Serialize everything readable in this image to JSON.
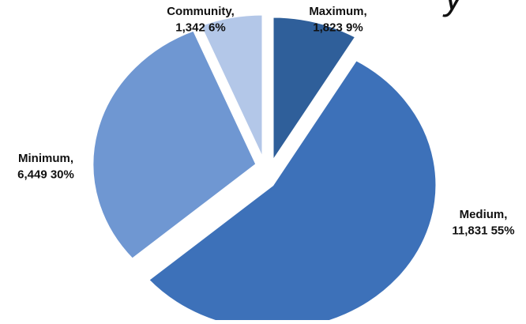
{
  "chart_data": {
    "type": "pie",
    "title_fragment": "y",
    "slices": [
      {
        "category": "Maximum",
        "value": 1823,
        "percent": 9,
        "label_line1": "Maximum,",
        "label_line2": "1,823 9%",
        "color": "#2f5f9a",
        "exploded": true
      },
      {
        "category": "Medium",
        "value": 11831,
        "percent": 55,
        "label_line1": "Medium,",
        "label_line2": "11,831 55%",
        "color": "#3d71b9",
        "exploded": true
      },
      {
        "category": "Minimum",
        "value": 6449,
        "percent": 30,
        "label_line1": "Minimum,",
        "label_line2": "6,449 30%",
        "color": "#6f97d2",
        "exploded": true
      },
      {
        "category": "Community",
        "value": 1342,
        "percent": 6,
        "label_line1": "Community,",
        "label_line2": "1,342 6%",
        "color": "#b3c7e8",
        "exploded": true
      }
    ],
    "legend": "none",
    "start_angle": "12 o'clock, clockwise"
  }
}
